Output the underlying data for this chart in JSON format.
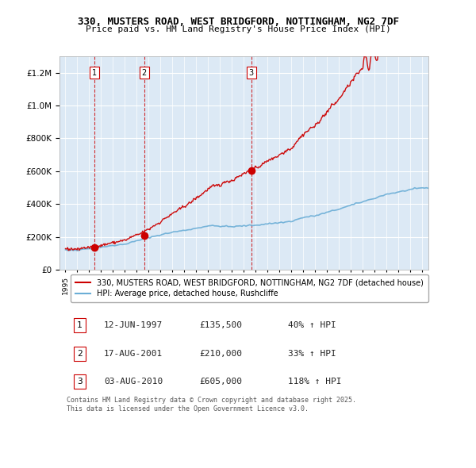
{
  "title_line1": "330, MUSTERS ROAD, WEST BRIDGFORD, NOTTINGHAM, NG2 7DF",
  "title_line2": "Price paid vs. HM Land Registry's House Price Index (HPI)",
  "legend_label1": "330, MUSTERS ROAD, WEST BRIDGFORD, NOTTINGHAM, NG2 7DF (detached house)",
  "legend_label2": "HPI: Average price, detached house, Rushcliffe",
  "sale1_date": "12-JUN-1997",
  "sale1_price": 135500,
  "sale1_hpi": "40% ↑ HPI",
  "sale2_date": "17-AUG-2001",
  "sale2_price": 210000,
  "sale2_hpi": "33% ↑ HPI",
  "sale3_date": "03-AUG-2010",
  "sale3_price": 605000,
  "sale3_hpi": "118% ↑ HPI",
  "footer": "Contains HM Land Registry data © Crown copyright and database right 2025.\nThis data is licensed under the Open Government Licence v3.0.",
  "hpi_color": "#6baed6",
  "property_color": "#cc0000",
  "sale_marker_color": "#cc0000",
  "dashed_line_color": "#cc0000",
  "background_color": "#dce9f5",
  "grid_color": "#ffffff",
  "ylim": [
    0,
    1300000
  ],
  "yticks": [
    0,
    200000,
    400000,
    600000,
    800000,
    1000000,
    1200000
  ],
  "xlim_start": 1994.5,
  "xlim_end": 2025.5
}
